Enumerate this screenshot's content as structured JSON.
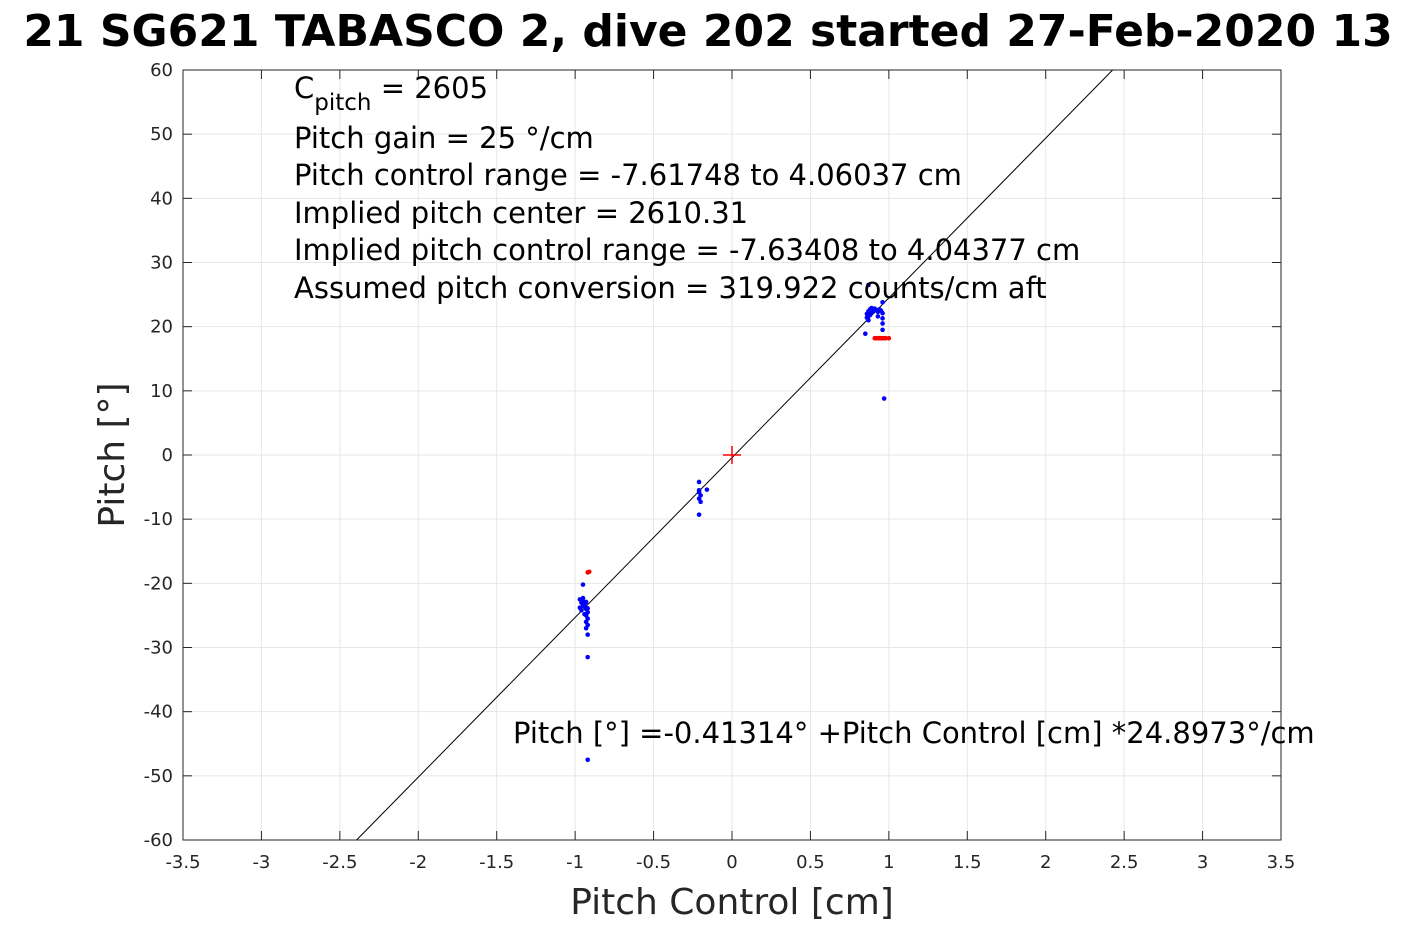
{
  "chart_data": {
    "type": "scatter",
    "title": "21 SG621 TABASCO 2, dive 202 started 27-Feb-2020 13",
    "xlabel": "Pitch Control [cm]",
    "ylabel": "Pitch [°]",
    "xlim": [
      -3.5,
      3.5
    ],
    "ylim": [
      -60,
      60
    ],
    "xticks": [
      "-3.5",
      "-3",
      "-2.5",
      "-2",
      "-1.5",
      "-1",
      "-0.5",
      "0",
      "0.5",
      "1",
      "1.5",
      "2",
      "2.5",
      "3",
      "3.5"
    ],
    "yticks": [
      "60",
      "50",
      "40",
      "30",
      "20",
      "10",
      "0",
      "-10",
      "-20",
      "-30",
      "-40",
      "-50",
      "-60"
    ],
    "grid": true,
    "annotations": {
      "cpitch_main": "C",
      "cpitch_sub": "pitch",
      "cpitch_rest": " = 2605",
      "gain": "Pitch gain = 25 °/cm",
      "control_range": "Pitch control range = -7.61748 to 4.06037 cm",
      "implied_center": "Implied pitch center = 2610.31",
      "implied_range": "Implied pitch control range = -7.63408 to 4.04377 cm",
      "conversion": "Assumed pitch conversion = 319.922 counts/cm aft",
      "fit_equation": "Pitch [°] =-0.41314° +Pitch Control [cm] *24.8973°/cm"
    },
    "fit_line": {
      "intercept": -0.41314,
      "slope": 24.8973,
      "color": "#000000"
    },
    "center_marker": {
      "x": 0,
      "y": 0,
      "color": "#ff0000"
    },
    "series": [
      {
        "color": "#0000ff",
        "points": [
          [
            -0.97,
            -22.5
          ],
          [
            -0.96,
            -23.0
          ],
          [
            -0.95,
            -23.5
          ],
          [
            -0.97,
            -23.8
          ],
          [
            -0.96,
            -24.2
          ],
          [
            -0.95,
            -22.8
          ],
          [
            -0.94,
            -23.3
          ],
          [
            -0.93,
            -24.0
          ],
          [
            -0.92,
            -24.5
          ],
          [
            -0.93,
            -25.0
          ],
          [
            -0.92,
            -25.5
          ],
          [
            -0.93,
            -26.0
          ],
          [
            -0.92,
            -26.5
          ],
          [
            -0.93,
            -27.0
          ],
          [
            -0.95,
            -22.3
          ],
          [
            -0.96,
            -22.6
          ],
          [
            -0.94,
            -24.8
          ],
          [
            -0.93,
            -22.9
          ],
          [
            -0.94,
            -23.6
          ],
          [
            -0.92,
            -23.9
          ],
          [
            -0.95,
            -20.2
          ],
          [
            -0.92,
            -28.0
          ],
          [
            -0.92,
            -31.5
          ],
          [
            -0.92,
            -47.5
          ],
          [
            -0.21,
            -4.2
          ],
          [
            -0.21,
            -5.8
          ],
          [
            -0.2,
            -6.3
          ],
          [
            -0.21,
            -6.8
          ],
          [
            -0.2,
            -7.3
          ],
          [
            -0.21,
            -5.5
          ],
          [
            -0.16,
            -5.4
          ],
          [
            -0.21,
            -9.3
          ],
          [
            0.86,
            22.0
          ],
          [
            0.87,
            22.4
          ],
          [
            0.88,
            22.7
          ],
          [
            0.89,
            22.9
          ],
          [
            0.9,
            22.5
          ],
          [
            0.91,
            22.8
          ],
          [
            0.92,
            22.6
          ],
          [
            0.93,
            22.3
          ],
          [
            0.94,
            22.7
          ],
          [
            0.95,
            22.5
          ],
          [
            0.96,
            22.1
          ],
          [
            0.96,
            21.3
          ],
          [
            0.96,
            20.5
          ],
          [
            0.96,
            19.5
          ],
          [
            0.86,
            21.4
          ],
          [
            0.87,
            21.0
          ],
          [
            0.88,
            21.8
          ],
          [
            0.89,
            22.2
          ],
          [
            0.93,
            21.6
          ],
          [
            0.87,
            26.5
          ],
          [
            0.96,
            23.8
          ],
          [
            0.85,
            18.9
          ],
          [
            0.97,
            8.8
          ]
        ]
      },
      {
        "color": "#ff0000",
        "points": [
          [
            -0.92,
            -18.3
          ],
          [
            -0.91,
            -18.2
          ],
          [
            0.91,
            18.2
          ],
          [
            0.92,
            18.2
          ],
          [
            0.93,
            18.2
          ],
          [
            0.94,
            18.2
          ],
          [
            0.95,
            18.2
          ],
          [
            0.96,
            18.2
          ],
          [
            0.97,
            18.2
          ],
          [
            0.98,
            18.2
          ],
          [
            1.0,
            18.2
          ]
        ]
      }
    ]
  }
}
